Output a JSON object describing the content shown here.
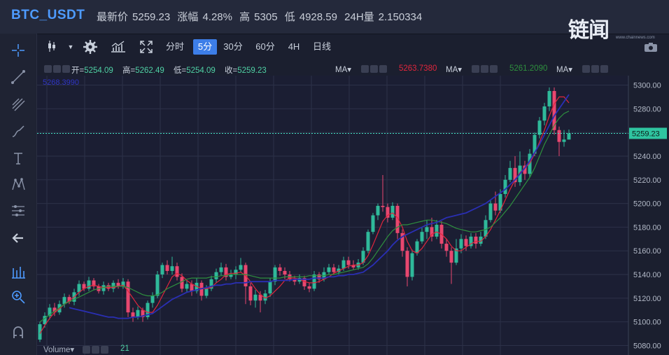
{
  "header": {
    "pair": "BTC_USDT",
    "latest_label": "最新价",
    "latest": "5259.23",
    "change_label": "涨幅",
    "change": "4.28%",
    "high_label": "高",
    "high": "5305",
    "low_label": "低",
    "low": "4928.59",
    "vol24_label": "24H量",
    "vol24": "2.150334"
  },
  "watermark": {
    "text": "链闻",
    "url": "www.chainnews.com"
  },
  "toolbar": {
    "intervals": [
      "分时",
      "5分",
      "30分",
      "60分",
      "4H",
      "日线"
    ],
    "active": "5分"
  },
  "legend": {
    "open_label": "开=",
    "open": "5254.09",
    "high_label": "高=",
    "high": "5262.49",
    "low_label": "低=",
    "low": "5254.09",
    "close_label": "收=",
    "close": "5259.23",
    "ma1_label": "MA▾",
    "ma1_value": "5263.7380",
    "ma2_label": "MA▾",
    "ma2_value": "5261.2090",
    "ma3_label": "MA▾",
    "overlay_value": "5268.3990"
  },
  "volume": {
    "label": "Volume▾",
    "value": "21"
  },
  "colors": {
    "up": "#2fb99a",
    "down": "#e8476f",
    "ma_red": "#e0263d",
    "ma_green": "#2e8f3e",
    "ma_blue": "#2a2fb3",
    "price_line": "#44e3c6"
  },
  "chart_data": {
    "type": "candlestick",
    "y_ticks": [
      5080,
      5100,
      5120,
      5140,
      5160,
      5180,
      5200,
      5220,
      5240,
      5260,
      5280,
      5300
    ],
    "y_tick_labels": [
      "5080.00",
      "5100.00",
      "5120.00",
      "5140.00",
      "5160.00",
      "5180.00",
      "5200.00",
      "5220.00",
      "5240.00",
      "5260.00",
      "5280.00",
      "5300.00"
    ],
    "ylim": [
      5072,
      5308
    ],
    "current_price": 5259.23,
    "current_price_label": "5259.23",
    "grid": true,
    "candles": [
      [
        5085,
        5098,
        5083,
        5100
      ],
      [
        5098,
        5105,
        5095,
        5108
      ],
      [
        5105,
        5112,
        5102,
        5115
      ],
      [
        5112,
        5108,
        5105,
        5116
      ],
      [
        5108,
        5115,
        5106,
        5118
      ],
      [
        5115,
        5121,
        5112,
        5124
      ],
      [
        5121,
        5117,
        5115,
        5123
      ],
      [
        5117,
        5125,
        5114,
        5128
      ],
      [
        5125,
        5132,
        5122,
        5135
      ],
      [
        5132,
        5128,
        5126,
        5134
      ],
      [
        5128,
        5135,
        5126,
        5138
      ],
      [
        5135,
        5130,
        5127,
        5137
      ],
      [
        5130,
        5126,
        5124,
        5132
      ],
      [
        5126,
        5131,
        5123,
        5134
      ],
      [
        5131,
        5128,
        5126,
        5133
      ],
      [
        5128,
        5133,
        5125,
        5135
      ],
      [
        5133,
        5130,
        5128,
        5136
      ],
      [
        5130,
        5134,
        5128,
        5137
      ],
      [
        5134,
        5108,
        5104,
        5136
      ],
      [
        5108,
        5104,
        5100,
        5112
      ],
      [
        5104,
        5110,
        5102,
        5113
      ],
      [
        5110,
        5104,
        5100,
        5112
      ],
      [
        5104,
        5116,
        5102,
        5118
      ],
      [
        5116,
        5122,
        5112,
        5125
      ],
      [
        5122,
        5140,
        5120,
        5143
      ],
      [
        5140,
        5148,
        5137,
        5150
      ],
      [
        5148,
        5143,
        5140,
        5152
      ],
      [
        5143,
        5147,
        5140,
        5155
      ],
      [
        5147,
        5138,
        5135,
        5150
      ],
      [
        5138,
        5128,
        5125,
        5141
      ],
      [
        5128,
        5132,
        5125,
        5135
      ],
      [
        5132,
        5126,
        5122,
        5135
      ],
      [
        5126,
        5133,
        5124,
        5137
      ],
      [
        5133,
        5122,
        5118,
        5135
      ],
      [
        5122,
        5128,
        5120,
        5131
      ],
      [
        5128,
        5136,
        5126,
        5139
      ],
      [
        5136,
        5142,
        5133,
        5145
      ],
      [
        5142,
        5146,
        5139,
        5150
      ],
      [
        5146,
        5138,
        5135,
        5149
      ],
      [
        5138,
        5140,
        5136,
        5144
      ],
      [
        5140,
        5144,
        5136,
        5147
      ],
      [
        5144,
        5148,
        5142,
        5154
      ],
      [
        5148,
        5130,
        5115,
        5150
      ],
      [
        5130,
        5118,
        5114,
        5133
      ],
      [
        5118,
        5123,
        5112,
        5127
      ],
      [
        5123,
        5118,
        5108,
        5126
      ],
      [
        5118,
        5124,
        5115,
        5127
      ],
      [
        5124,
        5134,
        5121,
        5137
      ],
      [
        5134,
        5146,
        5131,
        5148
      ],
      [
        5146,
        5143,
        5139,
        5149
      ],
      [
        5143,
        5140,
        5136,
        5146
      ],
      [
        5140,
        5136,
        5134,
        5143
      ],
      [
        5136,
        5134,
        5131,
        5139
      ],
      [
        5134,
        5137,
        5132,
        5140
      ],
      [
        5137,
        5130,
        5127,
        5139
      ],
      [
        5130,
        5128,
        5125,
        5133
      ],
      [
        5128,
        5140,
        5126,
        5143
      ],
      [
        5140,
        5136,
        5133,
        5142
      ],
      [
        5136,
        5142,
        5134,
        5146
      ],
      [
        5142,
        5146,
        5140,
        5149
      ],
      [
        5146,
        5142,
        5140,
        5149
      ],
      [
        5142,
        5145,
        5140,
        5148
      ],
      [
        5145,
        5152,
        5143,
        5155
      ],
      [
        5152,
        5148,
        5145,
        5155
      ],
      [
        5148,
        5146,
        5144,
        5152
      ],
      [
        5146,
        5150,
        5144,
        5153
      ],
      [
        5150,
        5160,
        5148,
        5163
      ],
      [
        5160,
        5176,
        5158,
        5178
      ],
      [
        5176,
        5190,
        5174,
        5192
      ],
      [
        5190,
        5198,
        5186,
        5200
      ],
      [
        5198,
        5197,
        5193,
        5224
      ],
      [
        5197,
        5188,
        5184,
        5200
      ],
      [
        5188,
        5198,
        5186,
        5201
      ],
      [
        5198,
        5175,
        5170,
        5200
      ],
      [
        5175,
        5160,
        5155,
        5178
      ],
      [
        5160,
        5138,
        5130,
        5163
      ],
      [
        5138,
        5158,
        5135,
        5161
      ],
      [
        5158,
        5168,
        5156,
        5170
      ],
      [
        5168,
        5176,
        5166,
        5180
      ],
      [
        5176,
        5180,
        5170,
        5186
      ],
      [
        5180,
        5172,
        5168,
        5188
      ],
      [
        5172,
        5182,
        5170,
        5186
      ],
      [
        5182,
        5166,
        5162,
        5185
      ],
      [
        5166,
        5160,
        5155,
        5170
      ],
      [
        5160,
        5150,
        5132,
        5163
      ],
      [
        5150,
        5162,
        5148,
        5170
      ],
      [
        5162,
        5170,
        5158,
        5174
      ],
      [
        5170,
        5164,
        5160,
        5173
      ],
      [
        5164,
        5172,
        5162,
        5175
      ],
      [
        5172,
        5166,
        5162,
        5175
      ],
      [
        5166,
        5172,
        5164,
        5176
      ],
      [
        5172,
        5186,
        5170,
        5190
      ],
      [
        5186,
        5200,
        5184,
        5203
      ],
      [
        5200,
        5194,
        5190,
        5210
      ],
      [
        5194,
        5208,
        5192,
        5212
      ],
      [
        5208,
        5220,
        5205,
        5224
      ],
      [
        5220,
        5230,
        5218,
        5236
      ],
      [
        5230,
        5218,
        5214,
        5240
      ],
      [
        5218,
        5232,
        5215,
        5244
      ],
      [
        5232,
        5225,
        5220,
        5236
      ],
      [
        5225,
        5242,
        5222,
        5246
      ],
      [
        5242,
        5258,
        5240,
        5260
      ],
      [
        5258,
        5270,
        5255,
        5273
      ],
      [
        5270,
        5282,
        5266,
        5285
      ],
      [
        5282,
        5295,
        5278,
        5298
      ],
      [
        5295,
        5262,
        5258,
        5298
      ],
      [
        5262,
        5252,
        5240,
        5265
      ],
      [
        5252,
        5254,
        5248,
        5262
      ],
      [
        5254,
        5259.23,
        5254.09,
        5262.49
      ]
    ],
    "ma_lines": [
      {
        "color": "#e0263d",
        "values": [
          5090,
          5097,
          5103,
          5108,
          5111,
          5115,
          5118,
          5121,
          5125,
          5128,
          5130,
          5131,
          5130,
          5129,
          5129,
          5129,
          5130,
          5131,
          5126,
          5120,
          5114,
          5110,
          5108,
          5108,
          5114,
          5122,
          5130,
          5138,
          5141,
          5139,
          5135,
          5132,
          5130,
          5128,
          5128,
          5129,
          5133,
          5136,
          5140,
          5141,
          5141,
          5142,
          5139,
          5134,
          5128,
          5123,
          5120,
          5122,
          5126,
          5130,
          5135,
          5137,
          5137,
          5136,
          5134,
          5133,
          5133,
          5134,
          5136,
          5138,
          5141,
          5143,
          5145,
          5147,
          5148,
          5148,
          5150,
          5156,
          5165,
          5175,
          5185,
          5190,
          5192,
          5188,
          5180,
          5168,
          5160,
          5158,
          5162,
          5168,
          5174,
          5176,
          5174,
          5170,
          5164,
          5160,
          5160,
          5163,
          5166,
          5168,
          5168,
          5172,
          5178,
          5186,
          5194,
          5203,
          5212,
          5220,
          5226,
          5230,
          5234,
          5242,
          5252,
          5262,
          5274,
          5284,
          5290,
          5290,
          5285
        ]
      },
      {
        "color": "#2e8f3e",
        "values": [
          5100,
          5103,
          5106,
          5109,
          5112,
          5115,
          5117,
          5119,
          5121,
          5123,
          5125,
          5127,
          5128,
          5129,
          5130,
          5130,
          5130,
          5130,
          5129,
          5127,
          5125,
          5123,
          5122,
          5122,
          5123,
          5125,
          5128,
          5130,
          5132,
          5134,
          5136,
          5137,
          5137,
          5137,
          5137,
          5138,
          5138,
          5139,
          5139,
          5140,
          5140,
          5140,
          5140,
          5139,
          5138,
          5137,
          5137,
          5137,
          5137,
          5137,
          5138,
          5138,
          5138,
          5138,
          5138,
          5139,
          5139,
          5139,
          5139,
          5140,
          5140,
          5141,
          5142,
          5143,
          5144,
          5145,
          5146,
          5149,
          5154,
          5160,
          5166,
          5172,
          5177,
          5180,
          5182,
          5182,
          5183,
          5184,
          5185,
          5186,
          5186,
          5185,
          5184,
          5183,
          5181,
          5179,
          5178,
          5177,
          5176,
          5176,
          5177,
          5178,
          5180,
          5184,
          5188,
          5193,
          5198,
          5204,
          5210,
          5216,
          5222,
          5230,
          5240,
          5250,
          5258,
          5266,
          5272,
          5276,
          5278
        ]
      },
      {
        "color": "#2a2fb3",
        "values": [
          null,
          null,
          null,
          null,
          null,
          null,
          5112,
          5111,
          5110,
          5109,
          5108,
          5107,
          5106,
          5105,
          5104,
          5104,
          5103,
          5103,
          5103,
          5104,
          5104,
          5105,
          5106,
          5107,
          5110,
          5113,
          5116,
          5119,
          5121,
          5123,
          5125,
          5126,
          5127,
          5128,
          5129,
          5130,
          5131,
          5131,
          5132,
          5132,
          5133,
          5133,
          5133,
          5134,
          5134,
          5134,
          5134,
          5134,
          5135,
          5135,
          5135,
          5135,
          5136,
          5136,
          5136,
          5136,
          5137,
          5137,
          5137,
          5138,
          5138,
          5139,
          5139,
          5140,
          5140,
          5141,
          5142,
          5145,
          5148,
          5152,
          5156,
          5160,
          5165,
          5169,
          5172,
          5174,
          5176,
          5178,
          5180,
          5182,
          5183,
          5184,
          5186,
          5188,
          5189,
          5190,
          5191,
          5192,
          5194,
          5196,
          5198,
          5200,
          5203,
          5206,
          5209,
          5212,
          5216,
          5220,
          5225,
          5230,
          5236,
          5243,
          5250,
          5258,
          5266,
          5274,
          5280,
          5286,
          5292
        ]
      }
    ],
    "volume_value": 21
  }
}
